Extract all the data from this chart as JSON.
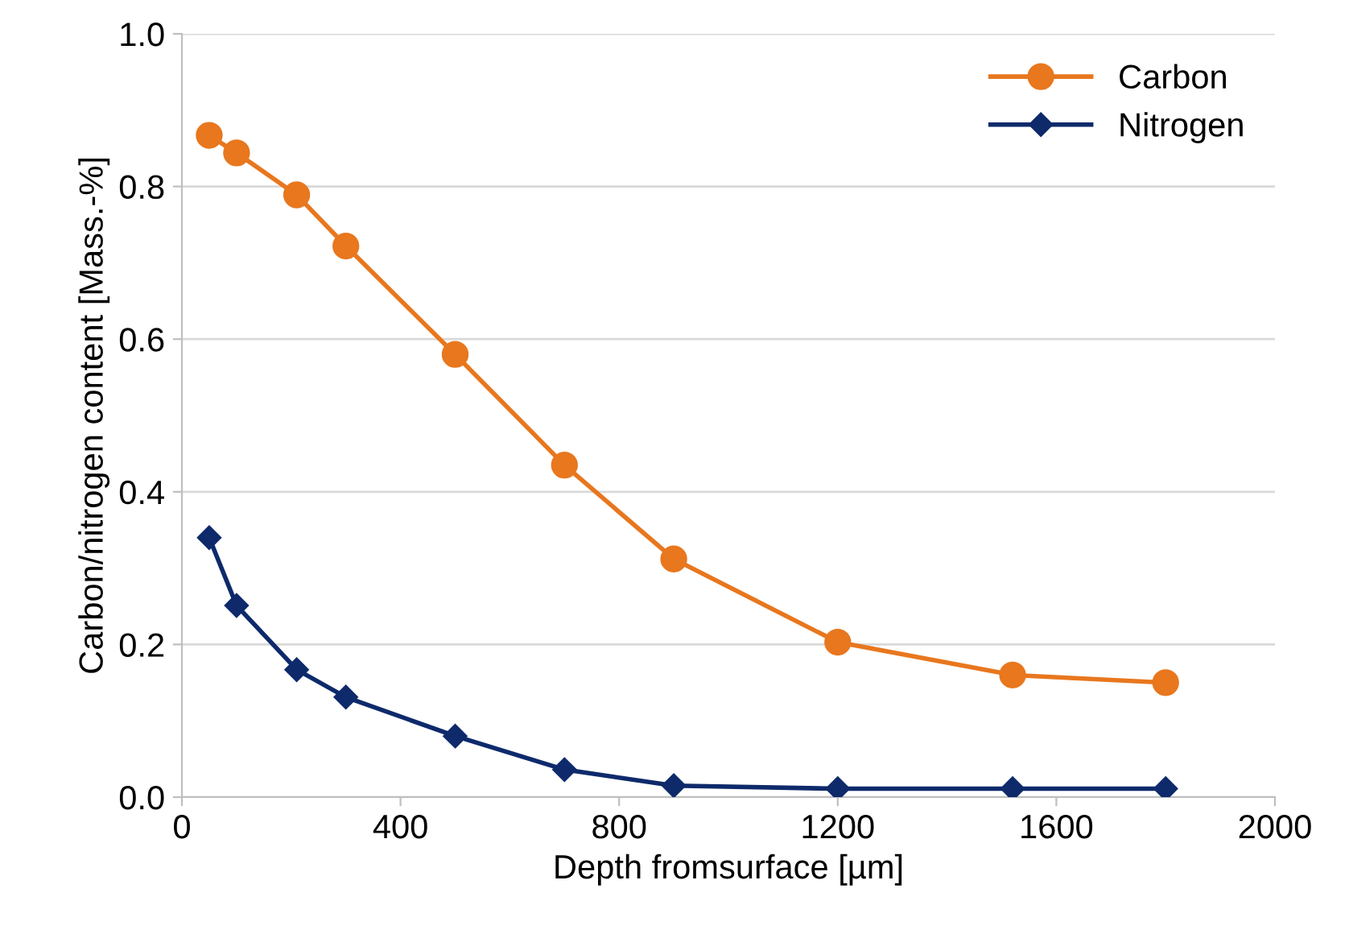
{
  "chart_data": {
    "type": "line",
    "xlabel": "Depth fromsurface [µm]",
    "ylabel": "Carbon/nitrogen content [Mass.-%]",
    "x": [
      50,
      100,
      210,
      300,
      500,
      700,
      900,
      1200,
      1520,
      1800
    ],
    "series": [
      {
        "name": "Carbon",
        "color": "#e8771e",
        "marker": "circle",
        "values": [
          0.867,
          0.844,
          0.789,
          0.722,
          0.58,
          0.435,
          0.312,
          0.203,
          0.16,
          0.15
        ]
      },
      {
        "name": "Nitrogen",
        "color": "#0e2a6b",
        "marker": "diamond",
        "values": [
          0.34,
          0.251,
          0.167,
          0.131,
          0.08,
          0.036,
          0.015,
          0.011,
          0.011,
          0.011
        ]
      }
    ],
    "xlim": [
      0,
      2000
    ],
    "xticks": [
      0,
      400,
      800,
      1200,
      1600,
      2000
    ],
    "ylim": [
      0,
      1.0
    ],
    "yticks": [
      {
        "value": 0,
        "label": "0.0"
      },
      {
        "value": 0.2,
        "label": "0.2"
      },
      {
        "value": 0.4,
        "label": "0.4"
      },
      {
        "value": 0.6,
        "label": "0.6"
      },
      {
        "value": 0.8,
        "label": "0.8"
      },
      {
        "value": 1.0,
        "label": "1.0"
      }
    ],
    "grid": "y",
    "legend": "top right",
    "line_style": "solid"
  }
}
